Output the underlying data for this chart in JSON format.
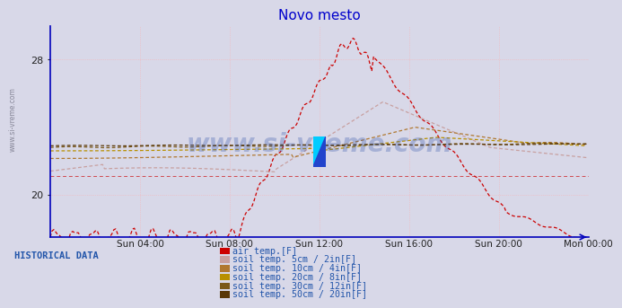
{
  "title": "Novo mesto",
  "title_color": "#0000cc",
  "background_color": "#d8d8e8",
  "plot_bg_color": "#d8d8e8",
  "ylim": [
    17.5,
    30.0
  ],
  "yticks": [
    20,
    28
  ],
  "xtick_labels": [
    "Sun 04:00",
    "Sun 08:00",
    "Sun 12:00",
    "Sun 16:00",
    "Sun 20:00",
    "Mon 00:00"
  ],
  "xtick_positions": [
    48,
    96,
    144,
    192,
    240,
    288
  ],
  "watermark": "www.si-vreme.com",
  "watermark_color": "#3355aa",
  "side_label": "www.si-vreme.com",
  "legend_title": "HISTORICAL DATA",
  "legend_items": [
    {
      "label": "air temp.[F]",
      "color": "#cc0000"
    },
    {
      "label": "soil temp. 5cm / 2in[F]",
      "color": "#c8a0a0"
    },
    {
      "label": "soil temp. 10cm / 4in[F]",
      "color": "#b07830"
    },
    {
      "label": "soil temp. 20cm / 8in[F]",
      "color": "#b89000"
    },
    {
      "label": "soil temp. 30cm / 12in[F]",
      "color": "#7a5818"
    },
    {
      "label": "soil temp. 50cm / 20in[F]",
      "color": "#5a3808"
    }
  ],
  "grid_color": "#ffaaaa",
  "axis_color": "#0000bb",
  "n_points": 288
}
